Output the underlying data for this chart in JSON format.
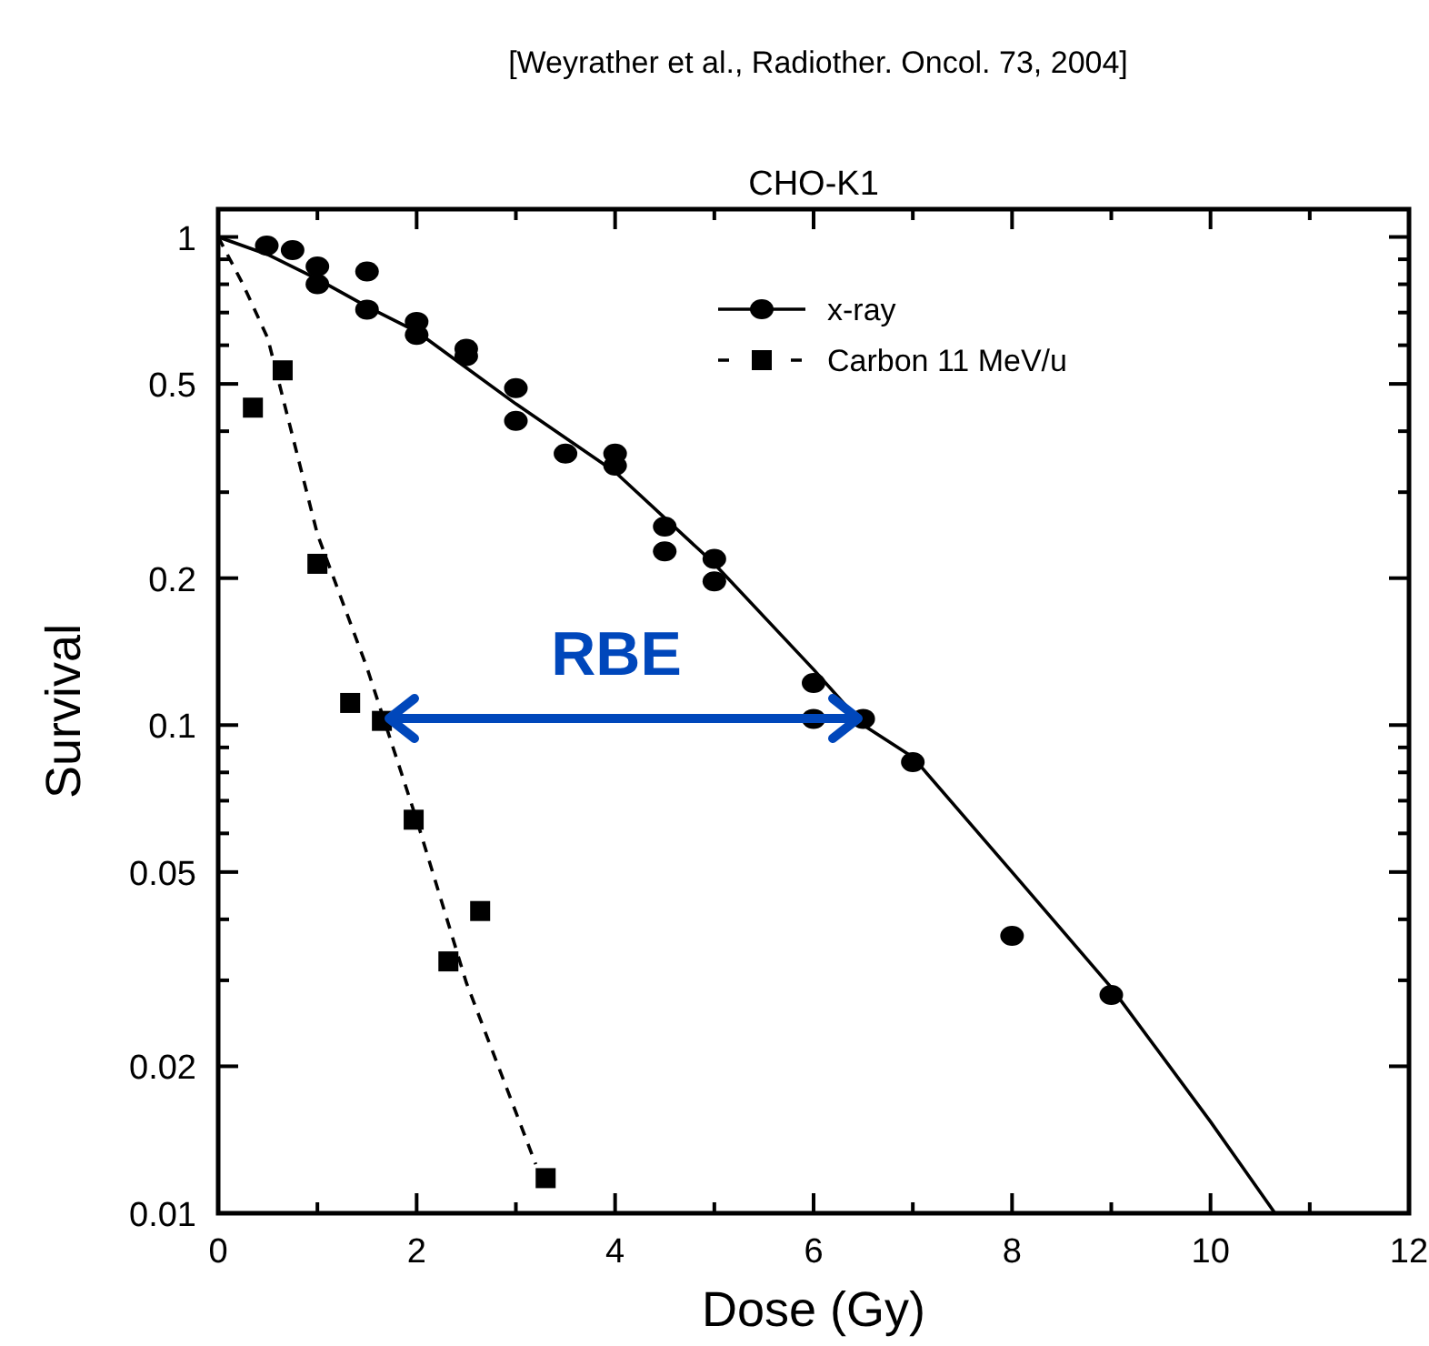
{
  "chart_data": {
    "type": "scatter",
    "title": "CHO-K1",
    "xlabel": "Dose (Gy)",
    "ylabel": "Survival",
    "log": "y",
    "xlim": [
      0,
      12
    ],
    "ylim": [
      0.01,
      1.14
    ],
    "xticks": [
      0,
      {
        "value": 1,
        "label": null
      },
      2,
      {
        "value": 3,
        "label": null
      },
      4,
      {
        "value": 5,
        "label": null
      },
      6,
      {
        "value": 7,
        "label": null
      },
      8,
      {
        "value": 9,
        "label": null
      },
      10,
      {
        "value": 11,
        "label": null
      },
      12
    ],
    "yticks": [
      0.01,
      0.02,
      {
        "value": 0.03,
        "label": null
      },
      {
        "value": 0.04,
        "label": null
      },
      0.05,
      {
        "value": 0.06,
        "label": null
      },
      {
        "value": 0.07,
        "label": null
      },
      {
        "value": 0.08,
        "label": null
      },
      {
        "value": 0.09,
        "label": null
      },
      0.1,
      0.2,
      {
        "value": 0.3,
        "label": null
      },
      {
        "value": 0.4,
        "label": null
      },
      0.5,
      {
        "value": 0.6,
        "label": null
      },
      {
        "value": 0.7,
        "label": null
      },
      {
        "value": 0.8,
        "label": null
      },
      {
        "value": 0.9,
        "label": null
      },
      1
    ],
    "legend": "top right",
    "grid": false,
    "series": [
      {
        "name": "x-ray",
        "marker": "circle",
        "color": "#000000",
        "x": [
          0.49,
          0.75,
          1.0,
          1.0,
          1.5,
          1.5,
          2.0,
          2.0,
          2.5,
          2.5,
          3.0,
          3.0,
          3.5,
          4.0,
          4.0,
          4.5,
          4.5,
          5.0,
          5.0,
          6.0,
          6.0,
          6.5,
          7.0,
          8.0,
          9.0
        ],
        "values": [
          0.96,
          0.94,
          0.87,
          0.8,
          0.85,
          0.71,
          0.67,
          0.63,
          0.59,
          0.57,
          0.49,
          0.42,
          0.36,
          0.36,
          0.34,
          0.255,
          0.227,
          0.219,
          0.197,
          0.122,
          0.103,
          0.103,
          0.084,
          0.037,
          0.028
        ]
      },
      {
        "type": "line",
        "line_style": "solid",
        "marker": "none",
        "color": "#000000",
        "x": [
          0,
          0.5,
          1,
          1.5,
          2,
          3,
          4,
          5,
          6,
          6.5,
          7,
          8,
          9,
          10,
          10.65
        ],
        "values": [
          1,
          0.92,
          0.82,
          0.72,
          0.64,
          0.455,
          0.33,
          0.214,
          0.13,
          0.1,
          0.086,
          0.05,
          0.029,
          0.0154,
          0.01
        ]
      },
      {
        "name": "Carbon 11 MeV/u",
        "marker": "square",
        "color": "#000000",
        "x": [
          0.35,
          0.65,
          1.0,
          1.33,
          1.65,
          1.97,
          2.32,
          2.64,
          3.3
        ],
        "values": [
          0.447,
          0.533,
          0.214,
          0.111,
          0.102,
          0.064,
          0.0328,
          0.0416,
          0.0118
        ]
      },
      {
        "type": "line",
        "line_style": "dashed",
        "marker": "none",
        "color": "#000000",
        "x": [
          0,
          0.25,
          0.5,
          1,
          1.5,
          2,
          2.5,
          3.2
        ],
        "values": [
          1,
          0.8,
          0.62,
          0.246,
          0.131,
          0.064,
          0.0297,
          0.0126
        ]
      }
    ],
    "annotations": [
      "[Weyrather et al., Radiother. Oncol. 73, 2004]",
      "RBE"
    ]
  }
}
